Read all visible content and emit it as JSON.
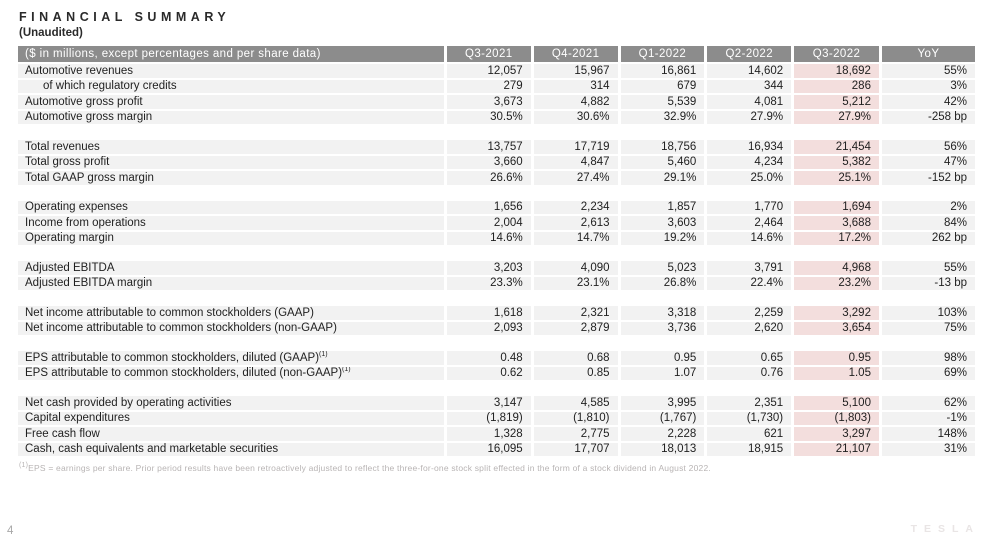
{
  "page": {
    "title": "FINANCIAL SUMMARY",
    "subtitle": "(Unaudited)",
    "page_number": "4",
    "logo_text": "TESLA",
    "footnote_sup": "(1)",
    "footnote": "EPS = earnings per share. Prior period results have been retroactively adjusted to reflect the three-for-one stock split effected in the form of a stock dividend in August 2022."
  },
  "colors": {
    "header_bg": "#8c8c8c",
    "row_bg": "#f2f2f2",
    "highlight_bg": "#f3dedd",
    "text": "#1f1f1f",
    "footnote_text": "#b8b4b4"
  },
  "table": {
    "label_header": "($ in millions, except percentages and per share data)",
    "columns": [
      "Q3-2021",
      "Q4-2021",
      "Q1-2022",
      "Q2-2022",
      "Q3-2022",
      "YoY"
    ],
    "highlight_column": "Q3-2022",
    "highlight_column_index": 4,
    "sections": [
      {
        "rows": [
          {
            "label": "Automotive revenues",
            "values": [
              "12,057",
              "15,967",
              "16,861",
              "14,602",
              "18,692",
              "55%"
            ]
          },
          {
            "label": "of which regulatory credits",
            "indent": true,
            "values": [
              "279",
              "314",
              "679",
              "344",
              "286",
              "3%"
            ]
          },
          {
            "label": "Automotive gross profit",
            "values": [
              "3,673",
              "4,882",
              "5,539",
              "4,081",
              "5,212",
              "42%"
            ]
          },
          {
            "label": "Automotive gross margin",
            "values": [
              "30.5%",
              "30.6%",
              "32.9%",
              "27.9%",
              "27.9%",
              "-258 bp"
            ]
          }
        ]
      },
      {
        "rows": [
          {
            "label": "Total revenues",
            "values": [
              "13,757",
              "17,719",
              "18,756",
              "16,934",
              "21,454",
              "56%"
            ]
          },
          {
            "label": "Total gross profit",
            "values": [
              "3,660",
              "4,847",
              "5,460",
              "4,234",
              "5,382",
              "47%"
            ]
          },
          {
            "label": "Total GAAP gross margin",
            "values": [
              "26.6%",
              "27.4%",
              "29.1%",
              "25.0%",
              "25.1%",
              "-152 bp"
            ]
          }
        ]
      },
      {
        "rows": [
          {
            "label": "Operating expenses",
            "values": [
              "1,656",
              "2,234",
              "1,857",
              "1,770",
              "1,694",
              "2%"
            ]
          },
          {
            "label": "Income from operations",
            "values": [
              "2,004",
              "2,613",
              "3,603",
              "2,464",
              "3,688",
              "84%"
            ]
          },
          {
            "label": "Operating margin",
            "values": [
              "14.6%",
              "14.7%",
              "19.2%",
              "14.6%",
              "17.2%",
              "262 bp"
            ]
          }
        ]
      },
      {
        "rows": [
          {
            "label": "Adjusted EBITDA",
            "values": [
              "3,203",
              "4,090",
              "5,023",
              "3,791",
              "4,968",
              "55%"
            ]
          },
          {
            "label": "Adjusted EBITDA margin",
            "values": [
              "23.3%",
              "23.1%",
              "26.8%",
              "22.4%",
              "23.2%",
              "-13 bp"
            ]
          }
        ]
      },
      {
        "rows": [
          {
            "label": "Net income attributable to common stockholders (GAAP)",
            "values": [
              "1,618",
              "2,321",
              "3,318",
              "2,259",
              "3,292",
              "103%"
            ]
          },
          {
            "label": "Net income attributable to common stockholders (non-GAAP)",
            "values": [
              "2,093",
              "2,879",
              "3,736",
              "2,620",
              "3,654",
              "75%"
            ]
          }
        ]
      },
      {
        "rows": [
          {
            "label": "EPS attributable to common stockholders, diluted (GAAP)",
            "sup": "(1)",
            "values": [
              "0.48",
              "0.68",
              "0.95",
              "0.65",
              "0.95",
              "98%"
            ]
          },
          {
            "label": "EPS attributable to common stockholders, diluted (non-GAAP)",
            "sup": "(1)",
            "values": [
              "0.62",
              "0.85",
              "1.07",
              "0.76",
              "1.05",
              "69%"
            ]
          }
        ]
      },
      {
        "rows": [
          {
            "label": "Net cash provided by operating activities",
            "values": [
              "3,147",
              "4,585",
              "3,995",
              "2,351",
              "5,100",
              "62%"
            ]
          },
          {
            "label": "Capital expenditures",
            "values": [
              "(1,819)",
              "(1,810)",
              "(1,767)",
              "(1,730)",
              "(1,803)",
              "-1%"
            ]
          },
          {
            "label": "Free cash flow",
            "values": [
              "1,328",
              "2,775",
              "2,228",
              "621",
              "3,297",
              "148%"
            ]
          },
          {
            "label": "Cash, cash equivalents and marketable securities",
            "values": [
              "16,095",
              "17,707",
              "18,013",
              "18,915",
              "21,107",
              "31%"
            ]
          }
        ]
      }
    ]
  }
}
